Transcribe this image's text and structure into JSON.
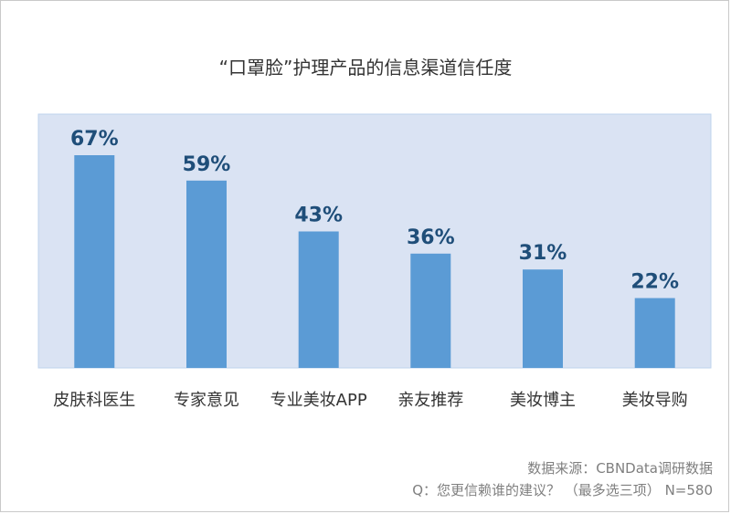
{
  "chart_data": {
    "type": "bar",
    "title": "“口罩脸”护理产品的信息渠道信任度",
    "categories": [
      "皮肤科医生",
      "专家意见",
      "专业美妆APP",
      "亲友推荐",
      "美妆博主",
      "美妆导购"
    ],
    "values": [
      67,
      59,
      43,
      36,
      31,
      22
    ],
    "value_suffix": "%",
    "ylim": [
      0,
      72
    ],
    "grid": false,
    "colors": {
      "bar": "#5b9bd5",
      "plot_background": "#dae3f3",
      "plot_border": "#bfd3ee",
      "value_label": "#1f4e79",
      "category_label": "#333333"
    }
  },
  "footer": {
    "source": "数据来源：CBNData调研数据",
    "note": "Q：您更信赖谁的建议？ （最多选三项） N=580"
  }
}
